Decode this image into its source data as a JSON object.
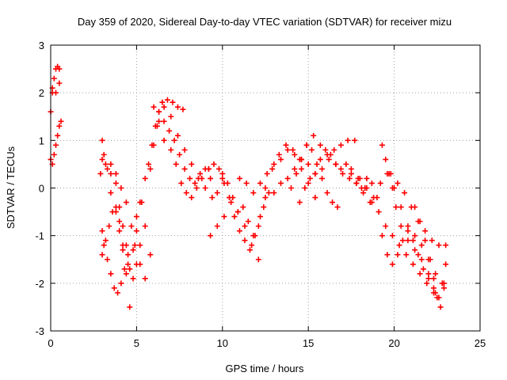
{
  "chart_data": {
    "type": "scatter",
    "title": "Day 359 of 2020, Sidereal Day-to-day VTEC variation (SDTVAR) for receiver mizu",
    "xlabel": "GPS time / hours",
    "ylabel": "SDTVAR / TECUs",
    "xlim": [
      0,
      25
    ],
    "ylim": [
      -3,
      3
    ],
    "xticks": [
      "0",
      "5",
      "10",
      "15",
      "20",
      "25"
    ],
    "yticks": [
      "-3",
      "-2",
      "-1",
      "0",
      "1",
      "2",
      "3"
    ],
    "grid": true,
    "marker": "+",
    "color": "#ff0000",
    "series": [
      {
        "name": "trace-1",
        "x": [
          0.0,
          0.1,
          0.2,
          0.3,
          0.4,
          0.5
        ],
        "y": [
          1.6,
          2.0,
          2.3,
          2.5,
          2.55,
          2.5
        ]
      },
      {
        "name": "trace-2",
        "x": [
          0.0,
          0.1,
          0.2,
          0.3,
          0.4,
          0.5,
          0.6
        ],
        "y": [
          0.6,
          0.5,
          0.7,
          0.9,
          1.1,
          1.3,
          1.4
        ]
      },
      {
        "name": "trace-3",
        "x": [
          0.1,
          0.3,
          0.5
        ],
        "y": [
          2.1,
          2.0,
          2.2
        ]
      },
      {
        "name": "trace-4",
        "x": [
          2.9,
          3.0,
          3.2,
          3.5,
          3.8,
          4.0,
          4.2,
          4.4,
          4.6,
          4.8,
          5.0,
          5.2,
          5.5
        ],
        "y": [
          0.3,
          0.6,
          0.5,
          0.3,
          0.1,
          -0.4,
          -0.8,
          -1.2,
          -1.7,
          -1.9,
          -1.6,
          -1.2,
          -0.8
        ]
      },
      {
        "name": "trace-5",
        "x": [
          3.0,
          3.1,
          3.3,
          3.5,
          3.8,
          4.0,
          4.2,
          4.5,
          4.8,
          5.0,
          5.3
        ],
        "y": [
          1.0,
          0.7,
          0.4,
          -0.1,
          -0.5,
          -0.9,
          -1.3,
          -1.6,
          -1.3,
          -0.9,
          -0.3
        ]
      },
      {
        "name": "trace-6",
        "x": [
          3.0,
          3.2,
          3.4,
          3.6,
          3.8,
          4.0,
          4.2,
          4.4,
          4.6
        ],
        "y": [
          -1.4,
          -1.1,
          -0.8,
          -0.5,
          -0.4,
          -0.7,
          -1.2,
          -1.8,
          -2.5
        ]
      },
      {
        "name": "trace-7",
        "x": [
          3.0,
          3.1,
          3.3,
          3.5,
          3.7,
          3.9,
          4.1,
          4.3,
          4.5
        ],
        "y": [
          -0.9,
          -1.2,
          -1.5,
          -1.8,
          -2.1,
          -2.2,
          -2.0,
          -1.7,
          -1.4
        ]
      },
      {
        "name": "trace-8",
        "x": [
          3.5,
          3.8,
          4.1,
          4.4,
          4.7,
          4.9,
          5.2,
          5.5,
          5.8
        ],
        "y": [
          0.5,
          0.3,
          0.0,
          -0.3,
          -0.8,
          -1.2,
          -1.6,
          -1.9,
          -1.4
        ]
      },
      {
        "name": "trace-9",
        "x": [
          5.0,
          5.2,
          5.5,
          5.7,
          5.9,
          6.1,
          6.3,
          6.5,
          6.8,
          7.1,
          7.4,
          7.7
        ],
        "y": [
          -0.6,
          -0.3,
          0.2,
          0.5,
          0.9,
          1.3,
          1.6,
          1.8,
          1.85,
          1.8,
          1.7,
          1.65
        ]
      },
      {
        "name": "trace-10",
        "x": [
          5.8,
          6.0,
          6.3,
          6.6,
          7.0,
          7.4,
          7.8,
          8.2,
          8.6,
          9.0,
          9.4,
          9.7,
          10.0
        ],
        "y": [
          0.4,
          0.9,
          1.4,
          1.7,
          1.5,
          1.1,
          0.8,
          0.5,
          0.2,
          0.0,
          -0.2,
          -0.1,
          0.2
        ]
      },
      {
        "name": "trace-11",
        "x": [
          6.0,
          6.3,
          6.6,
          6.9,
          7.2,
          7.5,
          7.8,
          8.1,
          8.4,
          8.7,
          9.0,
          9.3
        ],
        "y": [
          1.7,
          1.6,
          1.4,
          1.2,
          1.0,
          0.7,
          0.4,
          0.2,
          0.1,
          0.3,
          0.4,
          0.2
        ]
      },
      {
        "name": "trace-12",
        "x": [
          6.2,
          6.6,
          7.0,
          7.3,
          7.6,
          7.9,
          8.2,
          8.5,
          8.8,
          9.2
        ],
        "y": [
          1.3,
          1.0,
          0.8,
          0.5,
          0.1,
          -0.1,
          -0.2,
          0.0,
          0.2,
          0.4
        ]
      },
      {
        "name": "trace-13",
        "x": [
          9.2,
          9.5,
          9.8,
          10.1,
          10.4,
          10.7,
          11.0,
          11.3,
          11.6,
          11.9,
          12.2,
          12.5
        ],
        "y": [
          0.4,
          0.5,
          0.4,
          0.1,
          -0.2,
          -0.6,
          -0.9,
          -1.1,
          -1.3,
          -1.0,
          -0.6,
          -0.2
        ]
      },
      {
        "name": "trace-14",
        "x": [
          9.3,
          9.7,
          10.1,
          10.5,
          10.9,
          11.3,
          11.7,
          12.1
        ],
        "y": [
          -1.0,
          -0.8,
          -0.6,
          -0.3,
          -0.5,
          -0.8,
          -1.2,
          -1.5
        ]
      },
      {
        "name": "trace-15",
        "x": [
          10.0,
          10.3,
          10.6,
          10.9,
          11.2,
          11.5,
          11.8,
          12.1,
          12.4,
          12.7
        ],
        "y": [
          0.3,
          0.1,
          -0.2,
          -0.5,
          -0.4,
          -0.7,
          -1.0,
          -0.8,
          -0.4,
          -0.1
        ]
      },
      {
        "name": "trace-16",
        "x": [
          11.0,
          11.4,
          11.8,
          12.2,
          12.6,
          13.0,
          13.4,
          13.8,
          14.2,
          14.6,
          15.0,
          15.4
        ],
        "y": [
          0.2,
          0.1,
          -0.1,
          0.1,
          0.3,
          0.5,
          0.6,
          0.8,
          0.7,
          0.4,
          0.1,
          -0.2
        ]
      },
      {
        "name": "trace-17",
        "x": [
          12.5,
          12.9,
          13.3,
          13.7,
          14.1,
          14.5,
          14.9,
          15.3,
          15.7,
          16.1,
          16.5,
          16.9,
          17.3,
          17.7
        ],
        "y": [
          0.0,
          0.4,
          0.7,
          0.9,
          0.8,
          0.6,
          0.9,
          1.1,
          0.9,
          0.7,
          0.8,
          0.9,
          1.0,
          1.0
        ]
      },
      {
        "name": "trace-18",
        "x": [
          13.0,
          13.4,
          13.8,
          14.2,
          14.6,
          15.0,
          15.4,
          15.8,
          16.2,
          16.6,
          17.0,
          17.4,
          17.8,
          18.2,
          18.6,
          19.0
        ],
        "y": [
          -0.1,
          0.1,
          0.2,
          0.4,
          0.6,
          0.5,
          0.3,
          0.4,
          0.6,
          0.5,
          0.3,
          0.2,
          0.1,
          -0.1,
          -0.3,
          -0.2
        ]
      },
      {
        "name": "trace-19",
        "x": [
          14.0,
          14.3,
          14.6,
          14.9,
          15.2,
          15.5,
          15.8,
          16.1,
          16.4,
          16.7
        ],
        "y": [
          0.0,
          0.3,
          0.6,
          0.9,
          0.8,
          0.5,
          0.2,
          -0.1,
          -0.3,
          -0.4
        ]
      },
      {
        "name": "trace-20",
        "x": [
          14.5,
          14.8,
          15.1,
          15.4,
          15.7,
          16.0,
          16.3,
          16.6,
          16.9,
          17.2,
          17.5,
          17.8,
          18.1,
          18.4,
          18.7
        ],
        "y": [
          -0.3,
          0.0,
          0.2,
          0.3,
          0.6,
          0.8,
          0.7,
          0.5,
          0.4,
          0.5,
          0.3,
          0.1,
          0.0,
          0.2,
          0.1
        ]
      },
      {
        "name": "trace-21",
        "x": [
          17.5,
          17.9,
          18.3,
          18.7,
          19.1,
          19.5,
          19.9,
          20.3,
          20.7,
          21.1,
          21.5,
          21.9,
          22.3
        ],
        "y": [
          0.4,
          0.2,
          0.0,
          -0.3,
          -0.5,
          -0.8,
          -1.0,
          -1.2,
          -1.4,
          -1.6,
          -1.8,
          -2.0,
          -2.2
        ]
      },
      {
        "name": "trace-22",
        "x": [
          18.0,
          18.4,
          18.8,
          19.2,
          19.6,
          20.0,
          20.4,
          20.8,
          21.2,
          21.6,
          22.0,
          22.4,
          22.8
        ],
        "y": [
          0.2,
          0.0,
          -0.2,
          0.1,
          0.3,
          0.0,
          -0.4,
          -0.8,
          -1.0,
          -1.2,
          -1.5,
          -1.8,
          -2.0
        ]
      },
      {
        "name": "trace-23",
        "x": [
          19.3,
          19.5,
          19.7,
          19.9,
          20.1,
          20.4,
          20.8,
          21.2,
          21.6,
          22.0,
          22.4,
          22.8,
          23.0
        ],
        "y": [
          0.9,
          0.6,
          0.3,
          0.0,
          -0.4,
          -0.8,
          -1.1,
          -1.3,
          -1.5,
          -1.8,
          -2.2,
          -2.0,
          -1.6
        ]
      },
      {
        "name": "trace-24",
        "x": [
          19.3,
          19.6,
          19.9,
          20.2,
          20.5,
          20.8,
          21.1,
          21.4,
          21.7,
          22.0,
          22.3,
          22.6,
          22.9
        ],
        "y": [
          -1.0,
          -1.4,
          -1.6,
          -1.4,
          -1.1,
          -0.9,
          -1.1,
          -1.4,
          -1.7,
          -1.9,
          -2.1,
          -2.3,
          -2.0
        ]
      },
      {
        "name": "trace-25",
        "x": [
          19.8,
          20.2,
          20.6,
          21.0,
          21.4,
          21.8,
          22.2,
          22.6,
          23.0
        ],
        "y": [
          0.3,
          0.1,
          -0.1,
          -0.4,
          -0.7,
          -0.9,
          -1.1,
          -1.2,
          -1.2
        ]
      },
      {
        "name": "trace-26",
        "x": [
          21.2,
          21.5,
          21.8,
          22.1,
          22.3,
          22.5,
          22.7,
          22.9
        ],
        "y": [
          -0.4,
          -0.7,
          -1.1,
          -1.5,
          -1.9,
          -2.3,
          -2.5,
          -2.1
        ]
      }
    ]
  }
}
